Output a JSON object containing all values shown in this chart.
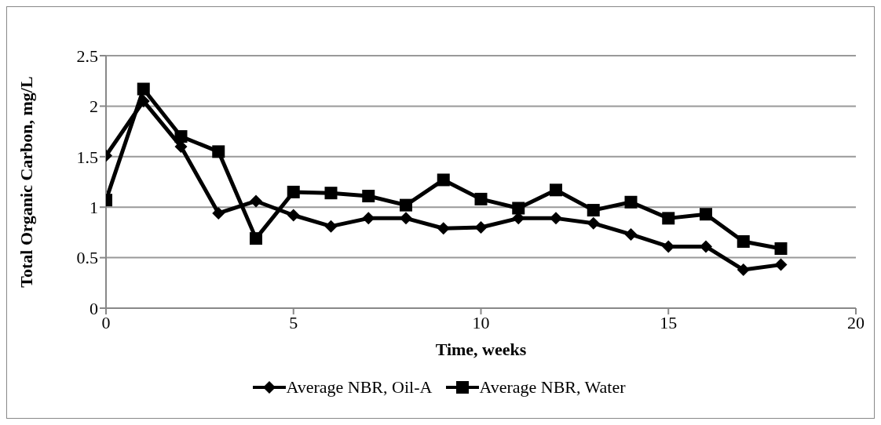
{
  "chart_data": {
    "type": "line",
    "xlabel": "Time, weeks",
    "ylabel": "Total Organic Carbon, mg/L",
    "x": [
      0,
      1,
      2,
      3,
      4,
      5,
      6,
      7,
      8,
      9,
      10,
      11,
      12,
      13,
      14,
      15,
      16,
      17,
      18
    ],
    "series": [
      {
        "name": "Average NBR, Oil-A",
        "color": "#000000",
        "marker": "diamond",
        "values": [
          1.51,
          2.05,
          1.6,
          0.94,
          1.06,
          0.92,
          0.81,
          0.89,
          0.89,
          0.79,
          0.8,
          0.89,
          0.89,
          0.84,
          0.73,
          0.61,
          0.61,
          0.38,
          0.43
        ]
      },
      {
        "name": "Average NBR, Water",
        "color": "#000000",
        "marker": "square",
        "values": [
          1.07,
          2.17,
          1.7,
          1.55,
          0.69,
          1.15,
          1.14,
          1.11,
          1.02,
          1.27,
          1.08,
          0.99,
          1.17,
          0.97,
          1.05,
          0.89,
          0.93,
          0.66,
          0.59
        ]
      }
    ],
    "xlim": [
      0,
      20
    ],
    "xticks": [
      0,
      5,
      10,
      15,
      20
    ],
    "ylim": [
      0,
      2.5
    ],
    "yticks": [
      0,
      0.5,
      1,
      1.5,
      2,
      2.5
    ],
    "grid": "y",
    "legend": "bottom",
    "line_style": "solid"
  }
}
